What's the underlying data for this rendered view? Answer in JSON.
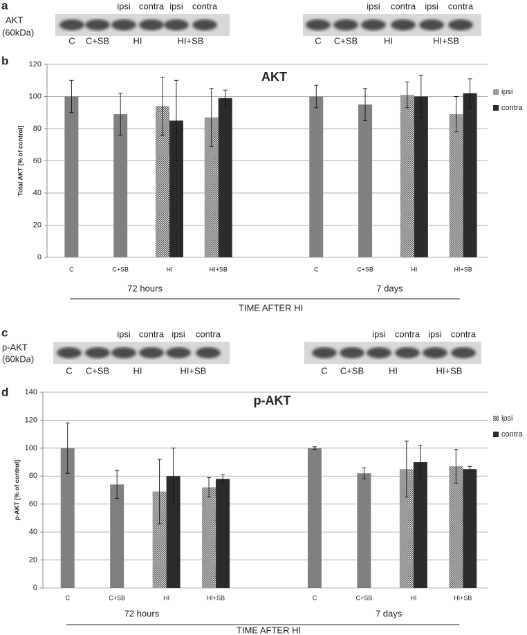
{
  "panel_labels": [
    "a",
    "b",
    "c",
    "d"
  ],
  "blots": [
    {
      "protein": "AKT",
      "size": "(60kDa)",
      "lanes_top": [
        "ipsi",
        "contra",
        "ipsi",
        "contra"
      ],
      "lanes_bottom": [
        "C",
        "C+SB",
        "HI",
        "HI+SB"
      ]
    },
    {
      "protein": "p-AKT",
      "size": "(60kDa)",
      "lanes_top": [
        "ipsi",
        "contra",
        "ipsi",
        "contra"
      ],
      "lanes_bottom": [
        "C",
        "C+SB",
        "HI",
        "HI+SB"
      ]
    }
  ],
  "chart_data": [
    {
      "type": "bar",
      "title": "AKT",
      "y_label": "Total AKT [% of control]",
      "x_title": "TIME AFTER HI",
      "groups": [
        "72 hours",
        "7 days"
      ],
      "categories": [
        "C",
        "C+SB",
        "HI",
        "HI+SB",
        null,
        "C",
        "C+SB",
        "HI",
        "HI+SB"
      ],
      "series": [
        {
          "color": "#808080",
          "values": [
            100,
            89,
            null,
            null,
            null,
            100,
            95,
            null,
            null
          ],
          "errors": [
            10,
            13,
            null,
            null,
            null,
            7,
            10,
            null,
            null
          ]
        },
        {
          "name": "ipsi",
          "color": "#c8c8c8",
          "values": [
            null,
            null,
            94,
            87,
            null,
            null,
            null,
            101,
            89
          ],
          "errors": [
            null,
            null,
            18,
            18,
            null,
            null,
            null,
            8,
            11
          ]
        },
        {
          "name": "contra",
          "color": "#2b2b2b",
          "values": [
            null,
            null,
            85,
            99,
            null,
            null,
            null,
            100,
            102
          ],
          "errors": [
            null,
            null,
            25,
            5,
            null,
            null,
            null,
            13,
            9
          ]
        }
      ],
      "ylim": [
        0,
        120
      ],
      "yticks": [
        0,
        20,
        40,
        60,
        80,
        100,
        120
      ],
      "grid": true,
      "legend": "right"
    },
    {
      "type": "bar",
      "title": "p-AKT",
      "y_label": "p-AKT [% of control]",
      "x_title": "TIME AFTER HI",
      "groups": [
        "72 hours",
        "7 days"
      ],
      "categories": [
        "C",
        "C+SB",
        "HI",
        "HI+SB",
        null,
        "C",
        "C+SB",
        "HI",
        "HI+SB"
      ],
      "series": [
        {
          "color": "#808080",
          "values": [
            100,
            74,
            null,
            null,
            null,
            100,
            82,
            null,
            null
          ],
          "errors": [
            18,
            10,
            null,
            null,
            null,
            1,
            4,
            null,
            null
          ]
        },
        {
          "name": "ipsi",
          "color": "#c8c8c8",
          "values": [
            null,
            null,
            69,
            72,
            null,
            null,
            null,
            85,
            87
          ],
          "errors": [
            null,
            null,
            23,
            7,
            null,
            null,
            null,
            20,
            12
          ]
        },
        {
          "name": "contra",
          "color": "#2b2b2b",
          "values": [
            null,
            null,
            80,
            78,
            null,
            null,
            null,
            90,
            85
          ],
          "errors": [
            null,
            null,
            20,
            3,
            null,
            null,
            null,
            12,
            2
          ]
        }
      ],
      "ylim": [
        0,
        140
      ],
      "yticks": [
        0,
        20,
        40,
        60,
        80,
        100,
        120,
        140
      ],
      "grid": true,
      "legend": "right"
    }
  ]
}
